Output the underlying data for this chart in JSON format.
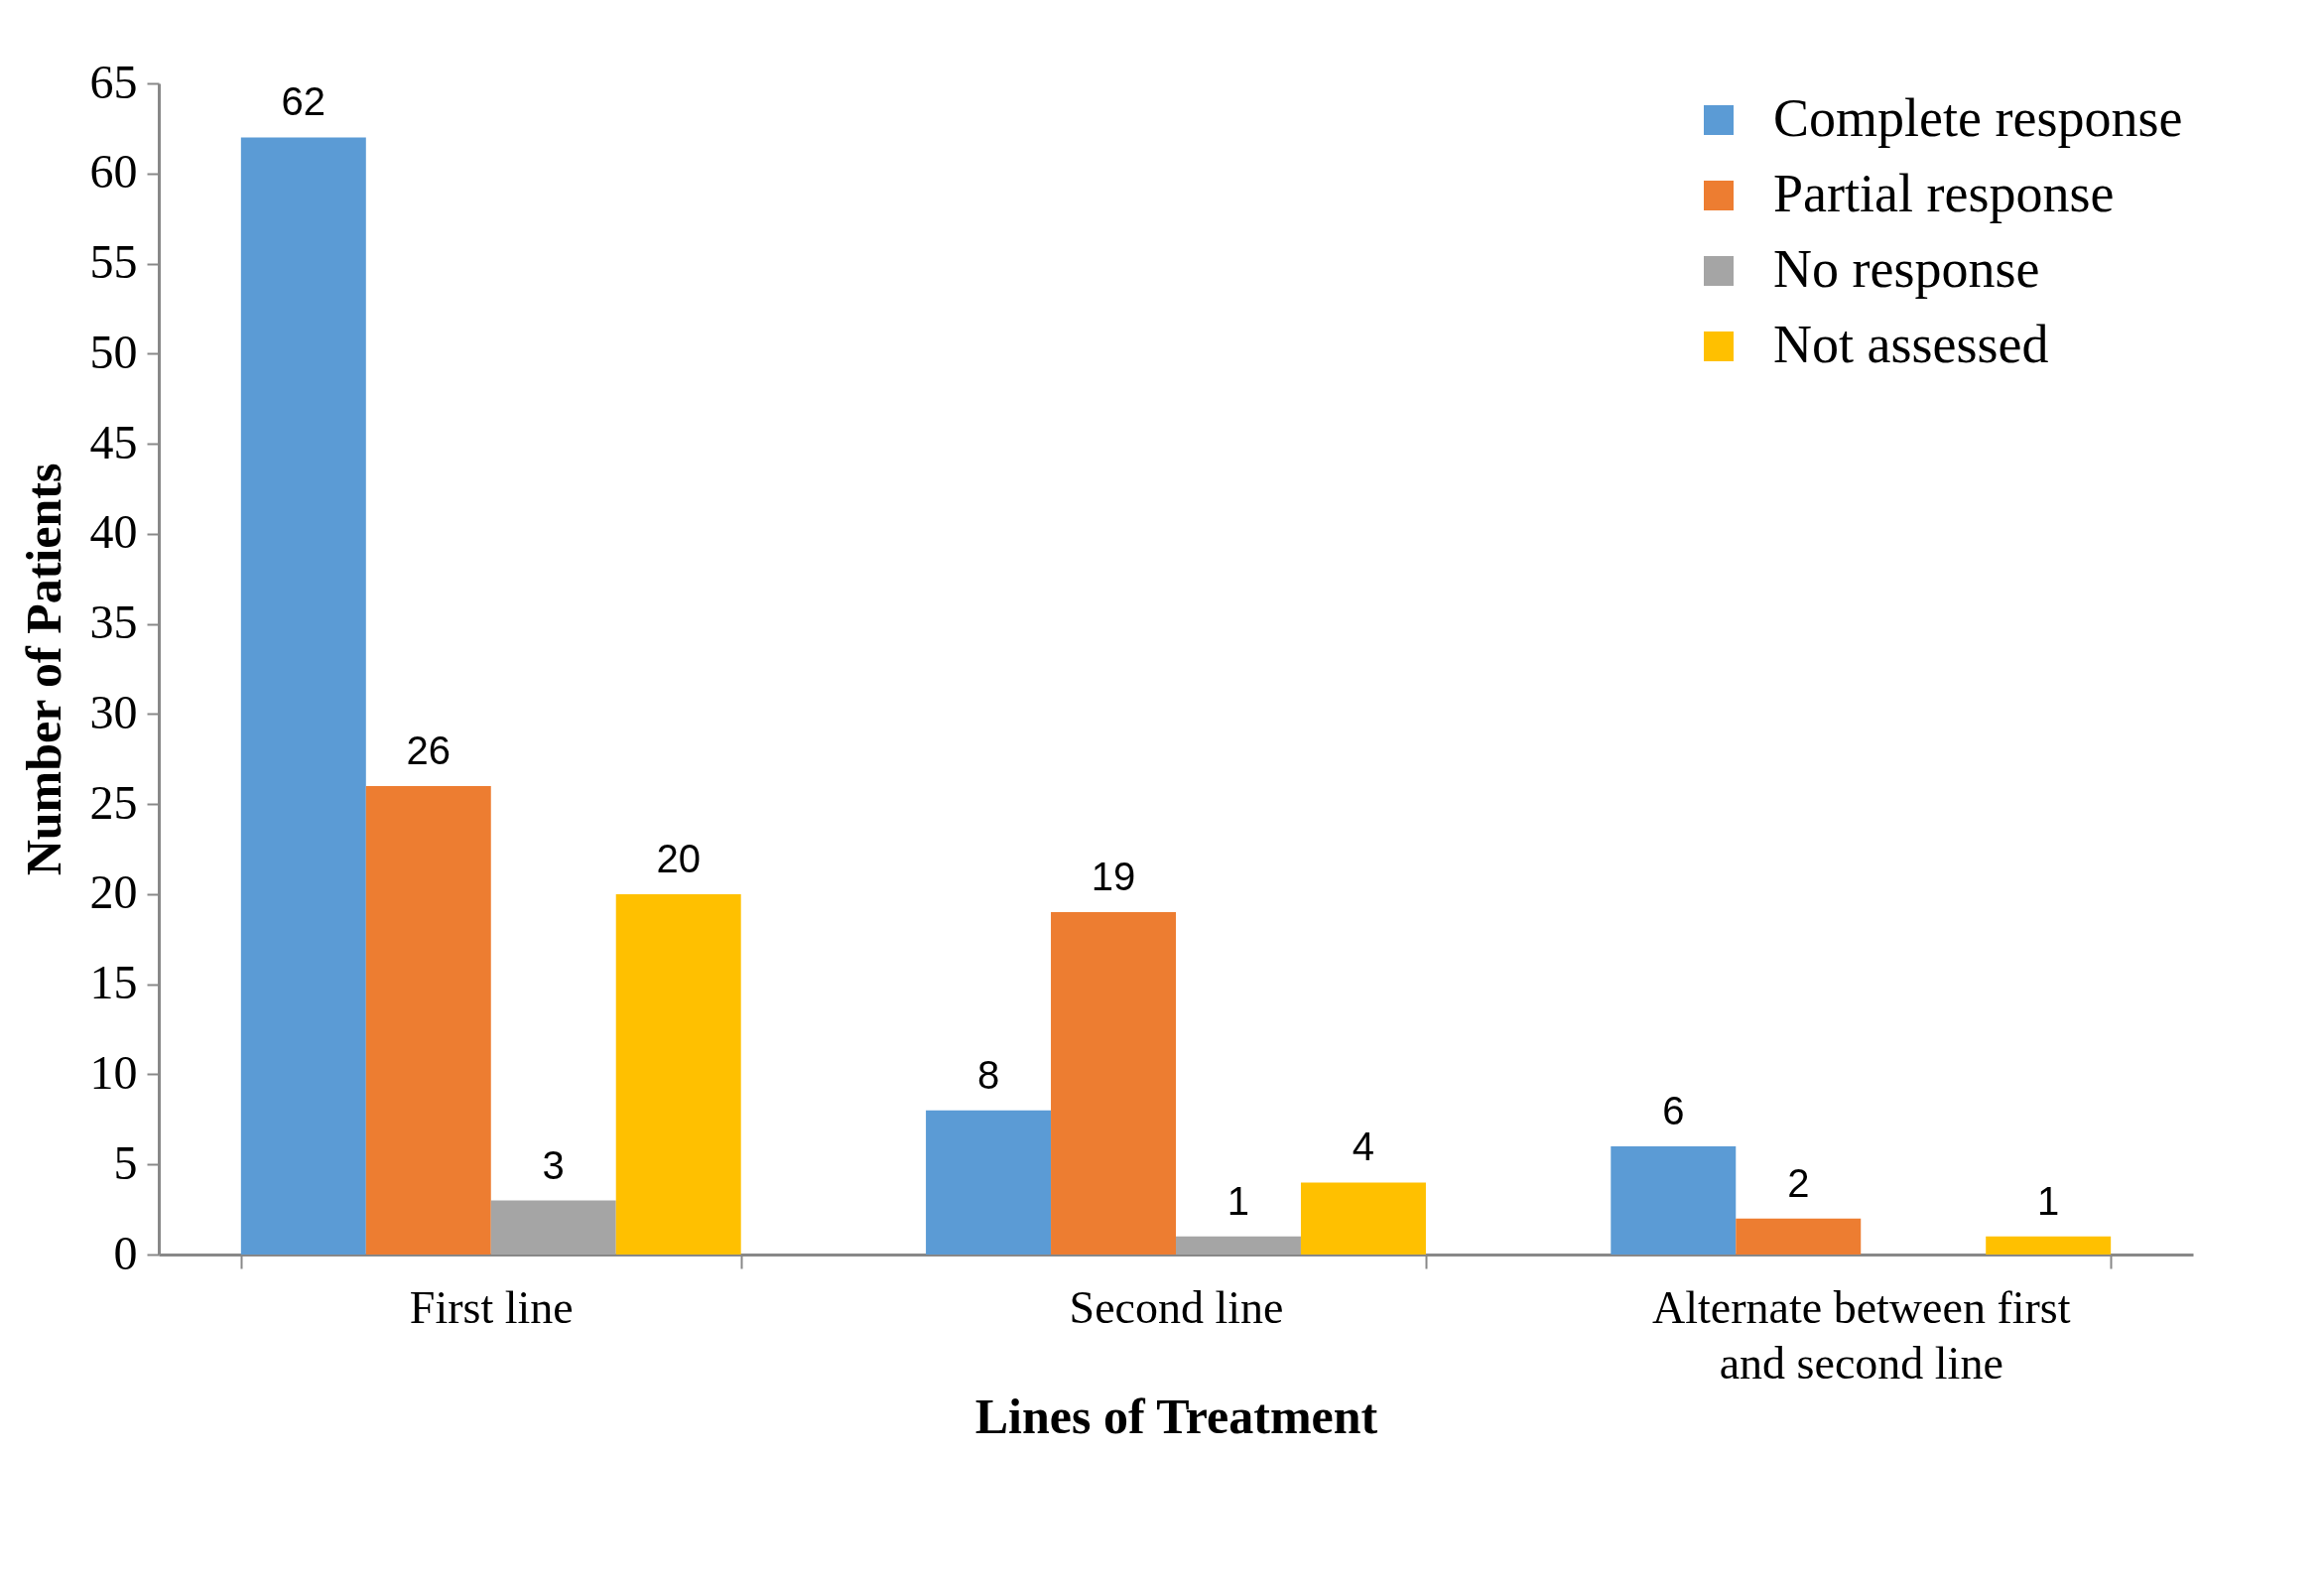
{
  "chart_data": {
    "type": "bar",
    "xlabel": "Lines of Treatment",
    "ylabel": "Number of Patients",
    "categories": [
      "First line",
      "Second line",
      "Alternate between first and second line"
    ],
    "series": [
      {
        "name": "Complete response",
        "color": "#5b9bd5",
        "values": [
          62,
          8,
          6
        ]
      },
      {
        "name": "Partial response",
        "color": "#ed7d31",
        "values": [
          26,
          19,
          2
        ]
      },
      {
        "name": "No response",
        "color": "#a5a5a5",
        "values": [
          3,
          1,
          null
        ]
      },
      {
        "name": "Not assessed",
        "color": "#ffc000",
        "values": [
          20,
          4,
          1
        ]
      }
    ],
    "ylim": [
      0,
      65
    ],
    "yticks": [
      0,
      5,
      10,
      15,
      20,
      25,
      30,
      35,
      40,
      45,
      50,
      55,
      60,
      65
    ],
    "grid": false,
    "legend": "top right",
    "data_labels": true
  }
}
